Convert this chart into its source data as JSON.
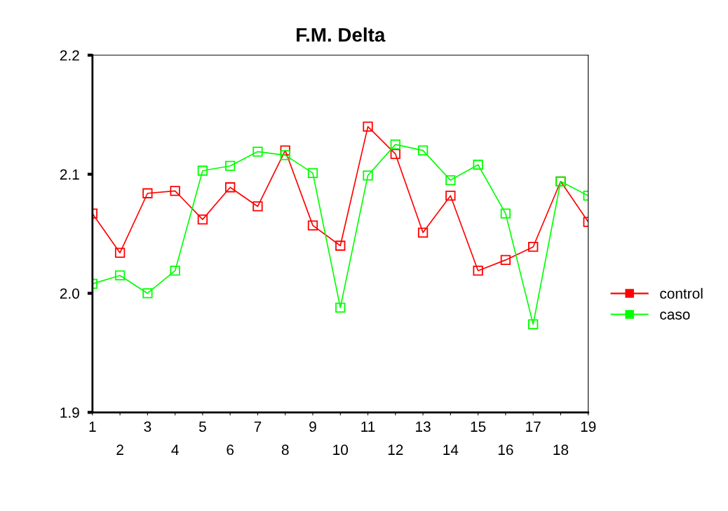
{
  "chart_data": {
    "type": "line",
    "title": "F.M. Delta",
    "categories": [
      "1",
      "2",
      "3",
      "4",
      "5",
      "6",
      "7",
      "8",
      "9",
      "10",
      "11",
      "12",
      "13",
      "14",
      "15",
      "16",
      "17",
      "18",
      "19"
    ],
    "series": [
      {
        "name": "control",
        "color": "#ff0000",
        "values": [
          2.067,
          2.034,
          2.084,
          2.086,
          2.062,
          2.089,
          2.073,
          2.12,
          2.057,
          2.04,
          2.14,
          2.117,
          2.051,
          2.082,
          2.019,
          2.028,
          2.039,
          2.094,
          2.06
        ]
      },
      {
        "name": "caso",
        "color": "#00ff00",
        "values": [
          2.008,
          2.015,
          2.0,
          2.019,
          2.103,
          2.107,
          2.119,
          2.116,
          2.101,
          1.988,
          2.099,
          2.125,
          2.12,
          2.095,
          2.108,
          2.067,
          1.974,
          2.094,
          2.082
        ]
      }
    ],
    "ylim": [
      1.9,
      2.2
    ],
    "yticks": [
      {
        "value": 1.9,
        "label": "1.9"
      },
      {
        "value": 2.0,
        "label": "2.0"
      },
      {
        "value": 2.1,
        "label": "2.1"
      },
      {
        "value": 2.2,
        "label": "2.2"
      }
    ],
    "marker": "square",
    "line_style": "solid",
    "grid": false,
    "legend": "right"
  }
}
